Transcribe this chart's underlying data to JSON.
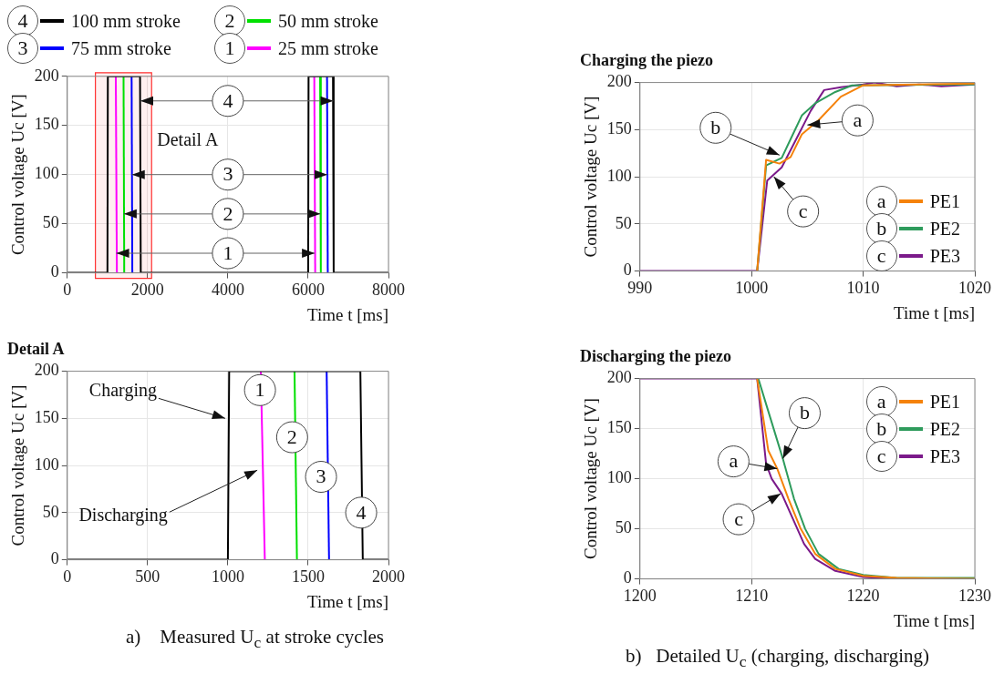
{
  "chart_data": [
    {
      "type": "line",
      "xlabel": "Time t [ms]",
      "ylabel": "Control voltage Uc [V]",
      "xlim": [
        0,
        8000
      ],
      "xticks": [
        0,
        2000,
        4000,
        6000,
        8000
      ],
      "ylim": [
        0,
        200
      ],
      "yticks": [
        0,
        50,
        100,
        150,
        200
      ],
      "grid": true,
      "legend": "top",
      "marker": "none",
      "series": [
        {
          "name": "100 mm stroke",
          "color": "#000000",
          "x": [
            0,
            1000,
            1010,
            1812,
            1830,
            6000,
            6010,
            6618,
            6635,
            8000
          ],
          "values": [
            0,
            0,
            200,
            200,
            0,
            0,
            200,
            200,
            0,
            0
          ]
        },
        {
          "name": "75 mm stroke",
          "color": "#0000ff",
          "x": [
            1602,
            1620
          ],
          "values": [
            200,
            0
          ]
        },
        {
          "name": "50 mm stroke",
          "color": "#00e000",
          "x": [
            1401,
            1418
          ],
          "values": [
            200,
            0
          ]
        },
        {
          "name": "25 mm stroke",
          "color": "#ff00ff",
          "x": [
            1208,
            1235
          ],
          "values": [
            200,
            0
          ]
        },
        {
          "color": "#0000ff",
          "x": [
            6470,
            6488
          ],
          "values": [
            200,
            0
          ]
        },
        {
          "color": "#00e000",
          "x": [
            6297,
            6315
          ],
          "values": [
            200,
            0
          ]
        },
        {
          "color": "#ff00ff",
          "x": [
            6152,
            6175
          ],
          "values": [
            200,
            0
          ]
        }
      ],
      "bands": [
        {
          "axis": "x",
          "from": 700,
          "to": 2100,
          "label": "Detail A",
          "color": "#ff3030"
        }
      ],
      "annotations": [
        {
          "text": "4",
          "x": 4000,
          "y": 175
        },
        {
          "text": "3",
          "x": 4000,
          "y": 100
        },
        {
          "text": "2",
          "x": 4000,
          "y": 60
        },
        {
          "text": "1",
          "x": 4000,
          "y": 20
        }
      ]
    },
    {
      "type": "line",
      "title": "Detail A",
      "xlabel": "Time t [ms]",
      "ylabel": "Control voltage Uc [V]",
      "xlim": [
        0,
        2000
      ],
      "xticks": [
        0,
        500,
        1000,
        1500,
        2000
      ],
      "ylim": [
        0,
        200
      ],
      "yticks": [
        0,
        50,
        100,
        150,
        200
      ],
      "grid": true,
      "marker": "none",
      "series": [
        {
          "color": "#000000",
          "x": [
            0,
            1000,
            1008,
            1825,
            1840,
            2000
          ],
          "values": [
            0,
            0,
            200,
            200,
            0,
            0
          ]
        },
        {
          "color": "#0000ff",
          "x": [
            1615,
            1630
          ],
          "values": [
            200,
            0
          ]
        },
        {
          "color": "#00e000",
          "x": [
            1415,
            1430
          ],
          "values": [
            200,
            0
          ]
        },
        {
          "color": "#ff00ff",
          "x": [
            1205,
            1230
          ],
          "values": [
            200,
            0
          ]
        }
      ],
      "annotations": [
        {
          "text": "Charging",
          "x": 1000,
          "y": 150
        },
        {
          "text": "Discharging",
          "x": 1200,
          "y": 95
        },
        {
          "text": "1",
          "x": 1200,
          "y": 180
        },
        {
          "text": "2",
          "x": 1400,
          "y": 130
        },
        {
          "text": "3",
          "x": 1580,
          "y": 88
        },
        {
          "text": "4",
          "x": 1830,
          "y": 50
        },
        "a)    Measured U$_{c}$ at stroke cycles"
      ]
    },
    {
      "type": "line",
      "title": "Charging the piezo",
      "xlabel": "Time t [ms]",
      "ylabel": "Control voltage Uc [V]",
      "xlim": [
        990,
        1020
      ],
      "xticks": [
        990,
        1000,
        1010,
        1020
      ],
      "ylim": [
        0,
        200
      ],
      "yticks": [
        0,
        50,
        100,
        150,
        200
      ],
      "grid": true,
      "legend": "bottom right",
      "marker": "none",
      "series": [
        {
          "name": "PE1",
          "color": "#f5820a",
          "x": [
            1000.5,
            1001.3,
            1002.5,
            1003.5,
            1004.5,
            1006,
            1008,
            1010,
            1020
          ],
          "values": [
            0,
            118,
            114,
            121,
            145,
            160,
            185,
            197,
            199
          ]
        },
        {
          "name": "PE2",
          "color": "#2e9b5c",
          "x": [
            1000.5,
            1001.3,
            1002.7,
            1003.7,
            1004.5,
            1005.7,
            1007.5,
            1009,
            1020
          ],
          "values": [
            0,
            112,
            120,
            145,
            165,
            178,
            190,
            197,
            198
          ]
        },
        {
          "name": "PE3",
          "color": "#7b1a8a",
          "x": [
            990,
            1000.5,
            1001.4,
            1002.7,
            1004,
            1005.3,
            1006.5,
            1008,
            1010,
            1011,
            1013,
            1015,
            1017,
            1020
          ],
          "values": [
            0,
            0,
            96,
            110,
            140,
            170,
            192,
            195,
            198,
            200,
            196,
            198,
            196,
            198
          ]
        }
      ],
      "annotations": [
        {
          "text": "a",
          "x": 1005,
          "y": 155
        },
        {
          "text": "b",
          "x": 1002.5,
          "y": 123
        },
        {
          "text": "c",
          "x": 1002,
          "y": 100
        }
      ]
    },
    {
      "type": "line",
      "title": "Discharging the piezo",
      "xlabel": "Time t [ms]",
      "ylabel": "Control voltage Uc [V]",
      "xlim": [
        1200,
        1230
      ],
      "xticks": [
        1200,
        1210,
        1220,
        1230
      ],
      "ylim": [
        0,
        200
      ],
      "yticks": [
        0,
        50,
        100,
        150,
        200
      ],
      "grid": true,
      "legend": "top right",
      "marker": "none",
      "series": [
        {
          "name": "PE1",
          "color": "#f5820a",
          "x": [
            1210.5,
            1211.5,
            1212.3,
            1213.3,
            1214.4,
            1215.7,
            1217.5,
            1220,
            1223,
            1230
          ],
          "values": [
            200,
            128,
            110,
            80,
            50,
            25,
            10,
            3,
            1,
            0
          ]
        },
        {
          "name": "PE2",
          "color": "#2e9b5c",
          "x": [
            1210.6,
            1212.8,
            1213.8,
            1214.8,
            1216,
            1217.8,
            1220,
            1223,
            1230
          ],
          "values": [
            200,
            120,
            80,
            50,
            25,
            10,
            4,
            1,
            1
          ]
        },
        {
          "name": "PE3",
          "color": "#7b1a8a",
          "x": [
            1200,
            1210.5,
            1211.3,
            1211.8,
            1212.7,
            1213.7,
            1214.7,
            1215.7,
            1217.5,
            1220,
            1223,
            1230
          ],
          "values": [
            200,
            200,
            115,
            100,
            85,
            60,
            35,
            20,
            8,
            2,
            0,
            0
          ]
        }
      ],
      "annotations": [
        {
          "text": "a",
          "x": 1212.3,
          "y": 110
        },
        {
          "text": "b",
          "x": 1212.8,
          "y": 120
        },
        {
          "text": "c",
          "x": 1212.6,
          "y": 85
        },
        "b)   Detailed U$_{c}$ (charging, discharging)"
      ]
    }
  ]
}
